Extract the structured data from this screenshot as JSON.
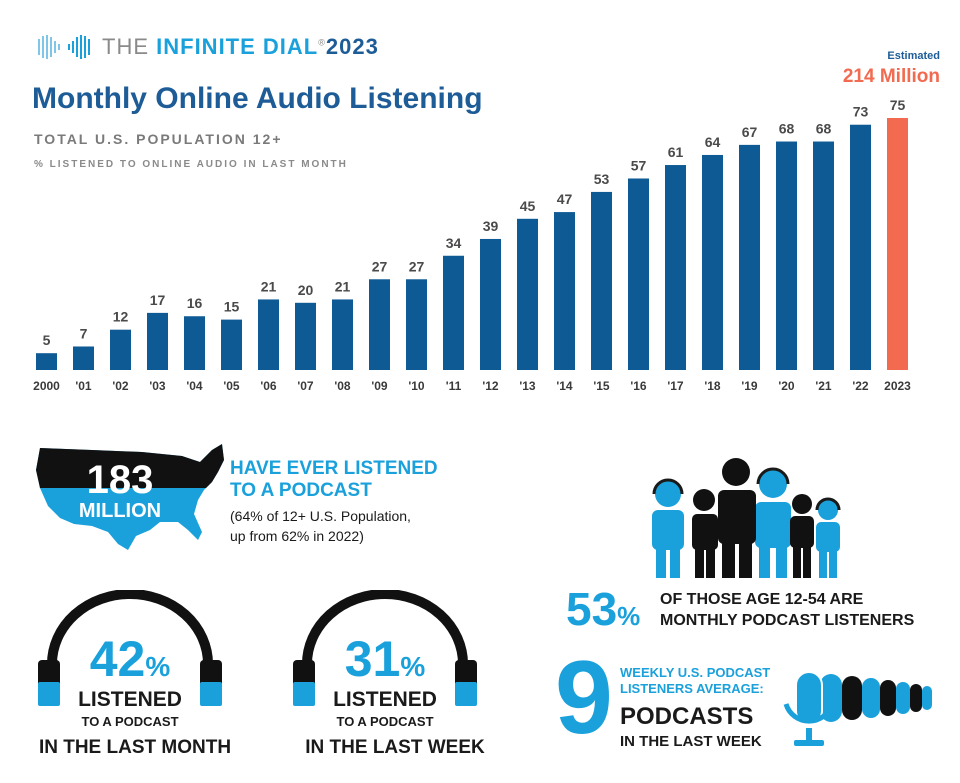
{
  "brand": {
    "part1": "THE ",
    "part2": "INFINITE DIAL",
    "reg": "®",
    "year": "2023"
  },
  "title": "Monthly Online Audio Listening",
  "subtitle": "TOTAL U.S. POPULATION 12+",
  "subtitle2": "% LISTENED TO ONLINE AUDIO IN LAST MONTH",
  "estimate": {
    "label": "Estimated",
    "value": "214 Million"
  },
  "colors": {
    "bar": "#0e5a94",
    "highlight": "#f26a4f",
    "accent": "#1aa1dc",
    "dark": "#1a1a1a"
  },
  "chart_data": {
    "type": "bar",
    "categories": [
      "2000",
      "'01",
      "'02",
      "'03",
      "'04",
      "'05",
      "'06",
      "'07",
      "'08",
      "'09",
      "'10",
      "'11",
      "'12",
      "'13",
      "'14",
      "'15",
      "'16",
      "'17",
      "'18",
      "'19",
      "'20",
      "'21",
      "'22",
      "2023"
    ],
    "values": [
      5,
      7,
      12,
      17,
      16,
      15,
      21,
      20,
      21,
      27,
      27,
      34,
      39,
      45,
      47,
      53,
      57,
      61,
      64,
      67,
      68,
      68,
      73,
      75
    ],
    "highlight_index": 23,
    "title": "Monthly Online Audio Listening",
    "xlabel": "",
    "ylabel": "",
    "ylim": [
      0,
      75
    ],
    "grid": false
  },
  "ever_listened": {
    "number": "183",
    "unit": "MILLION",
    "line1": "HAVE EVER LISTENED",
    "line2": "TO A PODCAST",
    "note1": "(64% of 12+ U.S. Population,",
    "note2": "up from 62% in 2022)"
  },
  "age_stat": {
    "number": "53",
    "pct": "%",
    "line1": "OF THOSE AGE 12-54 ARE",
    "line2": "MONTHLY PODCAST LISTENERS"
  },
  "monthly": {
    "number": "42",
    "pct": "%",
    "l1": "LISTENED",
    "l2": "TO A PODCAST",
    "l3": "IN THE LAST MONTH"
  },
  "weekly": {
    "number": "31",
    "pct": "%",
    "l1": "LISTENED",
    "l2": "TO A PODCAST",
    "l3": "IN THE LAST WEEK"
  },
  "avg_podcasts": {
    "number": "9",
    "line1": "WEEKLY U.S. PODCAST",
    "line2": "LISTENERS AVERAGE:",
    "big": "PODCASTS",
    "small": "IN THE LAST WEEK"
  },
  "icons": [
    "infinity-logo-icon",
    "usa-map-icon",
    "family-headphones-icon",
    "headphones-icon",
    "microphone-icon"
  ]
}
